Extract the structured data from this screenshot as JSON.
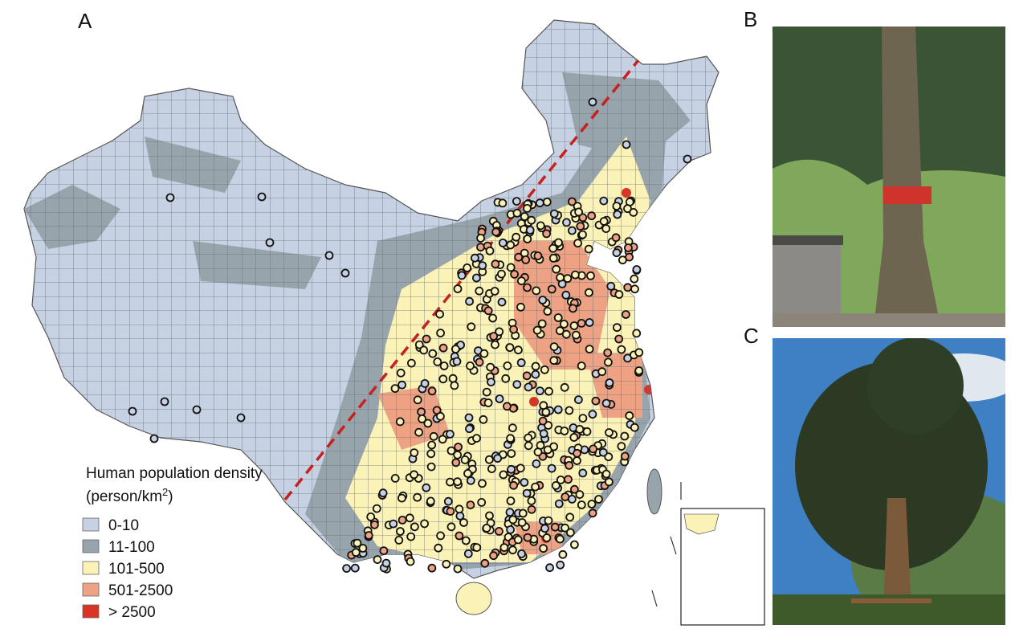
{
  "panels": [
    {
      "label": "A"
    },
    {
      "label": "B"
    },
    {
      "label": "C"
    }
  ],
  "legend": {
    "title": "Human population density",
    "unit_prefix": "(person/km",
    "unit_superscript": "2",
    "unit_suffix": ")",
    "items": [
      {
        "label": "0-10",
        "color": "#c6d2e3"
      },
      {
        "label": "11-100",
        "color": "#98a4ac"
      },
      {
        "label": "101-500",
        "color": "#fbf2b7"
      },
      {
        "label": "501-2500",
        "color": "#eda383"
      },
      {
        "label": "> 2500",
        "color": "#d83527"
      }
    ]
  }
}
